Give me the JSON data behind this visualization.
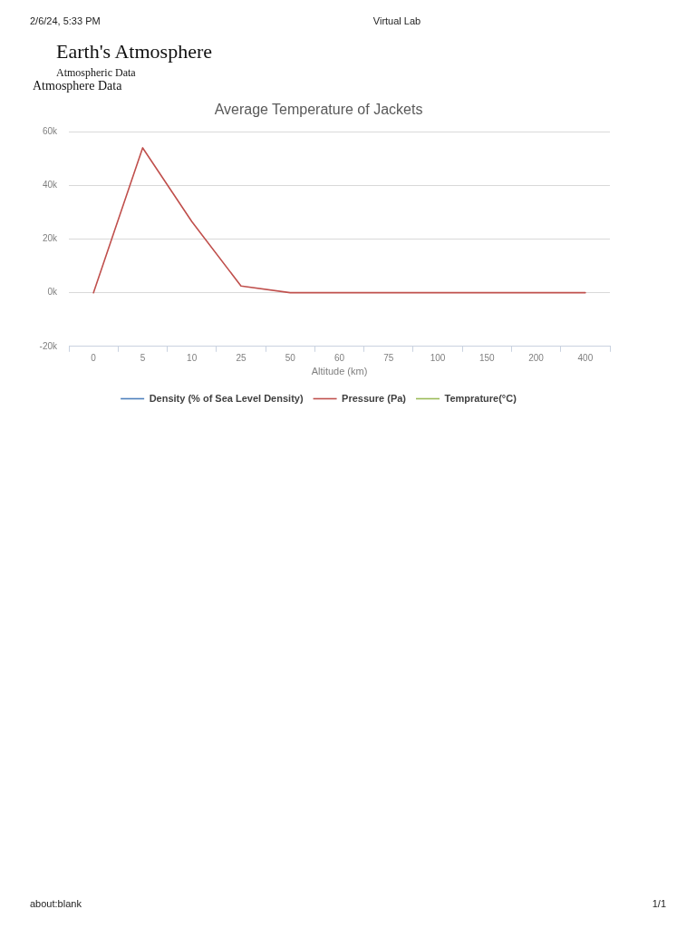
{
  "chart_data": {
    "type": "line",
    "title": "Average Temperature of Jackets",
    "xlabel": "Altitude (km)",
    "annotations": [
      "2/6/24, 5:33 PM",
      "Virtual Lab",
      "Earth's Atmosphere",
      "Atmospheric Data",
      "Atmosphere Data",
      "about:blank",
      "1/1"
    ],
    "categories": [
      "0",
      "5",
      "10",
      "25",
      "50",
      "60",
      "75",
      "100",
      "150",
      "200",
      "400"
    ],
    "series": [
      {
        "name": "Density (% of Sea Level Density)",
        "color": "#4f81bd",
        "values": [
          null,
          null,
          null,
          null,
          null,
          null,
          null,
          null,
          null,
          null,
          null
        ]
      },
      {
        "name": "Pressure (Pa)",
        "color": "#c0504d",
        "values": [
          0,
          54000,
          26500,
          2500,
          0,
          0,
          0,
          0,
          0,
          0,
          0
        ]
      },
      {
        "name": "Temprature(°C)",
        "color": "#9bbb59",
        "values": [
          null,
          null,
          null,
          null,
          null,
          null,
          null,
          null,
          null,
          null,
          null
        ]
      }
    ],
    "ylim": [
      -20000,
      60000
    ],
    "yticks": [
      {
        "value": -20000,
        "label": "-20k"
      },
      {
        "value": 0,
        "label": "0k"
      },
      {
        "value": 20000,
        "label": "20k"
      },
      {
        "value": 40000,
        "label": "40k"
      },
      {
        "value": 60000,
        "label": "60k"
      }
    ],
    "grid": "y",
    "legend": "bottom",
    "marker": "none"
  }
}
